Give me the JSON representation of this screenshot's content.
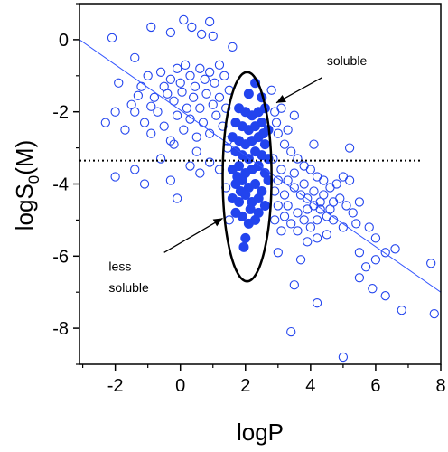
{
  "chart_data": {
    "type": "scatter",
    "xlabel": "logP",
    "ylabel": "logS0(M)",
    "ylabel_main": "logS",
    "ylabel_sub": "0",
    "ylabel_tail": "(M)",
    "xlim": [
      -3.1,
      8.0
    ],
    "ylim": [
      -9.0,
      1.0
    ],
    "xticks": [
      -2,
      0,
      2,
      4,
      6,
      8
    ],
    "xtick_labels": [
      "-2",
      "0",
      "2",
      "4",
      "6",
      "8"
    ],
    "yticks": [
      0,
      -2,
      -4,
      -6,
      -8
    ],
    "ytick_labels": [
      "0",
      "-2",
      "-4",
      "-6",
      "-8"
    ],
    "grid": false,
    "colors": {
      "points": "#2244ee",
      "fit_line": "#3355ff",
      "axis": "#000000"
    },
    "fit_line": {
      "x": [
        -3.1,
        8.0
      ],
      "y": [
        0.0,
        -7.0
      ]
    },
    "threshold_line": {
      "y": -3.35,
      "style": "dotted"
    },
    "ellipse": {
      "cx": 2.05,
      "cy": -3.8,
      "rx": 0.75,
      "ry": 2.9
    },
    "annotations": [
      {
        "text": "soluble",
        "x": 4.5,
        "y": -0.7
      },
      {
        "text": "less",
        "x": -2.2,
        "y": -6.4
      },
      {
        "text": "soluble",
        "x": -2.2,
        "y": -7.0
      }
    ],
    "series": [
      {
        "marker": "open-circle",
        "points": [
          [
            -2.1,
            0.05
          ],
          [
            -1.4,
            -0.5
          ],
          [
            -0.9,
            0.35
          ],
          [
            -0.3,
            0.2
          ],
          [
            0.1,
            0.55
          ],
          [
            0.35,
            0.35
          ],
          [
            0.65,
            0.15
          ],
          [
            0.9,
            0.5
          ],
          [
            1.0,
            0.1
          ],
          [
            1.6,
            -0.2
          ],
          [
            -1.9,
            -1.2
          ],
          [
            -1.5,
            -1.8
          ],
          [
            -1.2,
            -1.3
          ],
          [
            -1.0,
            -1.0
          ],
          [
            -0.8,
            -1.6
          ],
          [
            -0.6,
            -0.9
          ],
          [
            -0.5,
            -1.3
          ],
          [
            -0.3,
            -1.1
          ],
          [
            -0.1,
            -0.8
          ],
          [
            0.0,
            -1.2
          ],
          [
            0.15,
            -0.7
          ],
          [
            0.3,
            -1.0
          ],
          [
            0.45,
            -1.3
          ],
          [
            0.6,
            -0.8
          ],
          [
            0.75,
            -1.1
          ],
          [
            0.9,
            -0.9
          ],
          [
            1.05,
            -1.2
          ],
          [
            1.2,
            -0.7
          ],
          [
            1.35,
            -1.0
          ],
          [
            1.5,
            -1.4
          ],
          [
            -2.3,
            -2.3
          ],
          [
            -2.0,
            -2.0
          ],
          [
            -1.7,
            -2.5
          ],
          [
            -1.4,
            -2.0
          ],
          [
            -1.1,
            -2.3
          ],
          [
            -0.9,
            -2.6
          ],
          [
            -0.7,
            -2.0
          ],
          [
            -0.5,
            -2.4
          ],
          [
            -0.3,
            -2.8
          ],
          [
            -0.1,
            -2.1
          ],
          [
            0.1,
            -2.5
          ],
          [
            0.3,
            -2.2
          ],
          [
            0.5,
            -2.7
          ],
          [
            0.7,
            -2.3
          ],
          [
            0.9,
            -2.6
          ],
          [
            1.1,
            -2.1
          ],
          [
            1.3,
            -2.4
          ],
          [
            1.45,
            -2.8
          ],
          [
            -0.2,
            -1.7
          ],
          [
            0.2,
            -1.9
          ],
          [
            0.4,
            -1.6
          ],
          [
            0.6,
            -1.9
          ],
          [
            0.8,
            -1.5
          ],
          [
            1.0,
            -1.8
          ],
          [
            1.2,
            -1.6
          ],
          [
            1.4,
            -1.9
          ],
          [
            -1.3,
            -1.55
          ],
          [
            -0.9,
            -1.85
          ],
          [
            -0.4,
            -1.5
          ],
          [
            0.05,
            -1.45
          ],
          [
            -2.0,
            -3.8
          ],
          [
            -1.4,
            -3.6
          ],
          [
            -1.1,
            -4.0
          ],
          [
            -0.6,
            -3.3
          ],
          [
            -0.3,
            -3.9
          ],
          [
            -0.1,
            -4.4
          ],
          [
            0.3,
            -3.5
          ],
          [
            0.6,
            -3.7
          ],
          [
            0.9,
            -3.4
          ],
          [
            1.2,
            -3.6
          ],
          [
            1.4,
            -4.1
          ],
          [
            1.5,
            -5.0
          ],
          [
            1.45,
            -3.0
          ],
          [
            0.5,
            -3.1
          ],
          [
            -0.2,
            -2.9
          ],
          [
            2.8,
            -1.4
          ],
          [
            2.9,
            -2.0
          ],
          [
            3.0,
            -2.6
          ],
          [
            3.2,
            -2.9
          ],
          [
            3.4,
            -3.1
          ],
          [
            3.6,
            -3.3
          ],
          [
            3.8,
            -3.5
          ],
          [
            4.0,
            -3.6
          ],
          [
            4.2,
            -3.8
          ],
          [
            4.4,
            -3.9
          ],
          [
            2.85,
            -3.3
          ],
          [
            3.1,
            -3.6
          ],
          [
            3.3,
            -3.9
          ],
          [
            3.5,
            -4.1
          ],
          [
            3.7,
            -4.3
          ],
          [
            3.9,
            -4.4
          ],
          [
            4.1,
            -4.6
          ],
          [
            4.3,
            -4.7
          ],
          [
            4.5,
            -4.9
          ],
          [
            4.7,
            -4.5
          ],
          [
            2.9,
            -4.2
          ],
          [
            3.0,
            -4.6
          ],
          [
            3.2,
            -4.9
          ],
          [
            3.4,
            -5.1
          ],
          [
            3.6,
            -5.3
          ],
          [
            3.8,
            -5.0
          ],
          [
            4.0,
            -5.2
          ],
          [
            4.2,
            -5.5
          ],
          [
            4.4,
            -4.3
          ],
          [
            4.6,
            -4.1
          ],
          [
            4.8,
            -4.0
          ],
          [
            5.0,
            -3.8
          ],
          [
            5.2,
            -3.9
          ],
          [
            4.9,
            -4.4
          ],
          [
            5.1,
            -4.6
          ],
          [
            5.3,
            -4.8
          ],
          [
            5.5,
            -4.5
          ],
          [
            4.7,
            -5.0
          ],
          [
            5.0,
            -5.2
          ],
          [
            3.0,
            -3.9
          ],
          [
            3.2,
            -4.3
          ],
          [
            3.5,
            -3.7
          ],
          [
            3.8,
            -4.0
          ],
          [
            4.1,
            -4.2
          ],
          [
            4.3,
            -4.5
          ],
          [
            4.6,
            -4.7
          ],
          [
            3.1,
            -5.3
          ],
          [
            3.9,
            -5.6
          ],
          [
            4.5,
            -5.4
          ],
          [
            5.2,
            -3.0
          ],
          [
            2.9,
            -5.0
          ],
          [
            3.3,
            -4.6
          ],
          [
            3.6,
            -4.8
          ],
          [
            3.9,
            -4.7
          ],
          [
            4.2,
            -5.0
          ],
          [
            5.4,
            -5.1
          ],
          [
            5.8,
            -5.2
          ],
          [
            5.5,
            -5.9
          ],
          [
            5.7,
            -6.3
          ],
          [
            6.0,
            -6.1
          ],
          [
            6.3,
            -5.9
          ],
          [
            5.5,
            -6.6
          ],
          [
            5.9,
            -6.9
          ],
          [
            6.3,
            -7.1
          ],
          [
            6.6,
            -5.8
          ],
          [
            6.0,
            -5.5
          ],
          [
            3.5,
            -6.8
          ],
          [
            3.4,
            -8.1
          ],
          [
            4.2,
            -7.3
          ],
          [
            5.0,
            -8.8
          ],
          [
            6.8,
            -7.5
          ],
          [
            7.7,
            -6.2
          ],
          [
            7.8,
            -7.6
          ],
          [
            3.0,
            -5.9
          ],
          [
            3.7,
            -6.1
          ],
          [
            2.95,
            -2.3
          ],
          [
            3.1,
            -1.9
          ],
          [
            3.3,
            -2.5
          ],
          [
            3.5,
            -2.1
          ],
          [
            4.1,
            -2.9
          ]
        ]
      },
      {
        "marker": "filled-circle",
        "points": [
          [
            2.3,
            -1.2
          ],
          [
            2.1,
            -1.5
          ],
          [
            2.5,
            -1.6
          ],
          [
            1.8,
            -1.9
          ],
          [
            2.0,
            -2.0
          ],
          [
            2.2,
            -2.1
          ],
          [
            2.4,
            -2.0
          ],
          [
            2.6,
            -1.9
          ],
          [
            1.7,
            -2.3
          ],
          [
            1.9,
            -2.4
          ],
          [
            2.1,
            -2.5
          ],
          [
            2.3,
            -2.4
          ],
          [
            2.5,
            -2.3
          ],
          [
            2.7,
            -2.5
          ],
          [
            1.6,
            -2.7
          ],
          [
            1.8,
            -2.8
          ],
          [
            2.0,
            -2.9
          ],
          [
            2.2,
            -2.8
          ],
          [
            2.4,
            -2.7
          ],
          [
            2.6,
            -2.9
          ],
          [
            1.7,
            -3.1
          ],
          [
            1.9,
            -3.2
          ],
          [
            2.1,
            -3.3
          ],
          [
            2.3,
            -3.1
          ],
          [
            2.5,
            -3.2
          ],
          [
            2.7,
            -3.3
          ],
          [
            1.6,
            -3.6
          ],
          [
            1.8,
            -3.5
          ],
          [
            2.0,
            -3.7
          ],
          [
            2.2,
            -3.6
          ],
          [
            2.4,
            -3.5
          ],
          [
            2.6,
            -3.7
          ],
          [
            1.7,
            -4.0
          ],
          [
            1.9,
            -3.9
          ],
          [
            2.1,
            -4.1
          ],
          [
            2.3,
            -4.0
          ],
          [
            2.5,
            -4.2
          ],
          [
            2.7,
            -3.9
          ],
          [
            1.6,
            -4.4
          ],
          [
            1.8,
            -4.5
          ],
          [
            2.0,
            -4.3
          ],
          [
            2.2,
            -4.5
          ],
          [
            2.4,
            -4.4
          ],
          [
            2.6,
            -4.6
          ],
          [
            1.7,
            -4.8
          ],
          [
            1.9,
            -4.9
          ],
          [
            2.1,
            -5.1
          ],
          [
            2.3,
            -5.0
          ],
          [
            2.0,
            -5.5
          ],
          [
            1.95,
            -5.75
          ],
          [
            2.4,
            -4.8
          ],
          [
            1.85,
            -4.2
          ],
          [
            2.15,
            -4.7
          ],
          [
            2.55,
            -2.6
          ],
          [
            1.75,
            -3.8
          ]
        ]
      }
    ]
  }
}
